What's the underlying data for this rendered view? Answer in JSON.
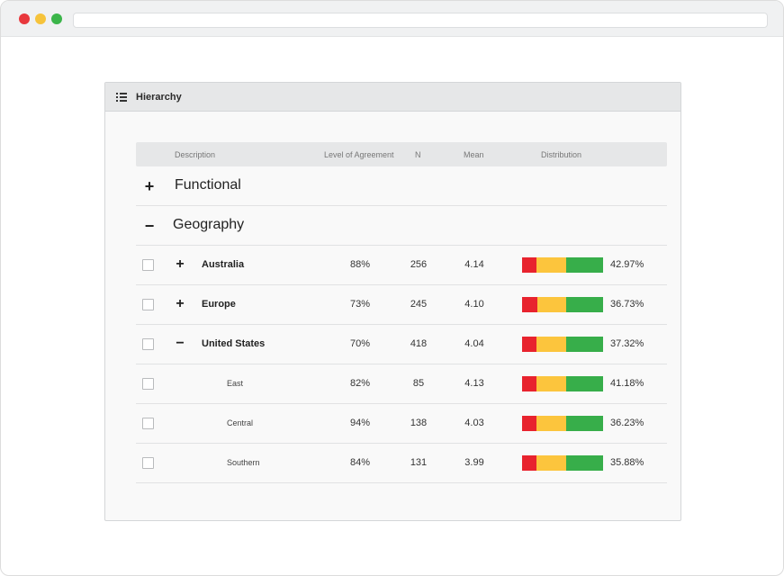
{
  "panel": {
    "title": "Hierarchy"
  },
  "columns": {
    "description": "Description",
    "agreement": "Level of Agreement",
    "n": "N",
    "mean": "Mean",
    "distribution": "Distribution"
  },
  "groups": [
    {
      "sign": "+",
      "label": "Functional"
    },
    {
      "sign": "−",
      "label": "Geography"
    }
  ],
  "colors": {
    "red": "#e8232e",
    "yellow": "#fcc53d",
    "green": "#37ae4a"
  },
  "rows": [
    {
      "sign": "+",
      "label": "Australia",
      "level": 1,
      "agreement": "88%",
      "n": "256",
      "mean": "4.14",
      "pct": "42.97%",
      "dist": [
        0.18,
        0.36,
        0.46
      ]
    },
    {
      "sign": "+",
      "label": "Europe",
      "level": 1,
      "agreement": "73%",
      "n": "245",
      "mean": "4.10",
      "pct": "36.73%",
      "dist": [
        0.19,
        0.36,
        0.45
      ]
    },
    {
      "sign": "−",
      "label": "United States",
      "level": 1,
      "agreement": "70%",
      "n": "418",
      "mean": "4.04",
      "pct": "37.32%",
      "dist": [
        0.18,
        0.37,
        0.45
      ]
    },
    {
      "sign": "",
      "label": "East",
      "level": 2,
      "agreement": "82%",
      "n": "85",
      "mean": "4.13",
      "pct": "41.18%",
      "dist": [
        0.18,
        0.37,
        0.45
      ]
    },
    {
      "sign": "",
      "label": "Central",
      "level": 2,
      "agreement": "94%",
      "n": "138",
      "mean": "4.03",
      "pct": "36.23%",
      "dist": [
        0.18,
        0.37,
        0.45
      ]
    },
    {
      "sign": "",
      "label": "Southern",
      "level": 2,
      "agreement": "84%",
      "n": "131",
      "mean": "3.99",
      "pct": "35.88%",
      "dist": [
        0.18,
        0.37,
        0.45
      ]
    }
  ]
}
